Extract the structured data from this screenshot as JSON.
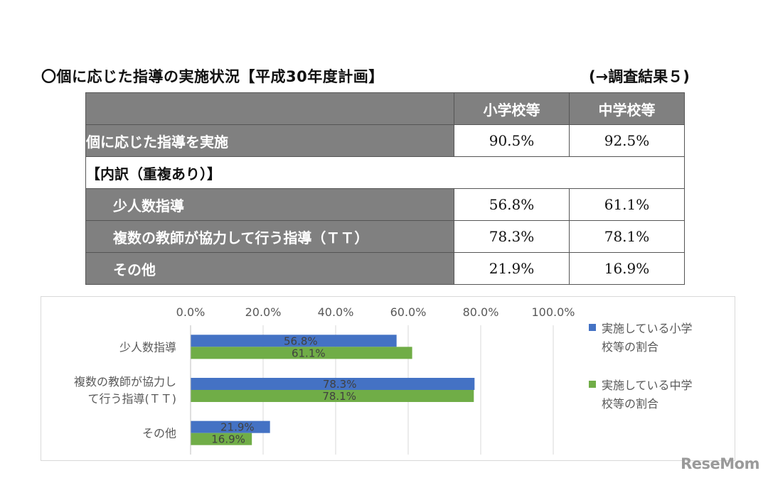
{
  "header": {
    "title": "〇個に応じた指導の実施状況【平成30年度計画】",
    "reference": "(→調査結果５)"
  },
  "summary_table": {
    "columns": [
      "小学校等",
      "中学校等"
    ],
    "rows": {
      "total": {
        "label": "個に応じた指導を実施",
        "elementary": "90.5%",
        "middle": "92.5%"
      },
      "section_label": "【内訳（重複あり）】",
      "small_group": {
        "label": "少人数指導",
        "elementary": "56.8%",
        "middle": "61.1%"
      },
      "team_teaching": {
        "label": "複数の教師が協力して行う指導（ＴＴ）",
        "elementary": "78.3%",
        "middle": "78.1%"
      },
      "other": {
        "label": "その他",
        "elementary": "21.9%",
        "middle": "16.9%"
      }
    }
  },
  "chart_data": {
    "type": "bar",
    "orientation": "horizontal",
    "categories": [
      "少人数指導",
      "複数の教師が協力して行う指導(ＴＴ)",
      "その他"
    ],
    "category_lines": [
      [
        "少人数指導"
      ],
      [
        "複数の教師が協力し",
        "て行う指導(ＴＴ)"
      ],
      [
        "その他"
      ]
    ],
    "series": [
      {
        "name": "実施している小学校等の割合",
        "name_lines": [
          "実施している小学",
          "校等の割合"
        ],
        "color": "#4472C4",
        "values": [
          56.8,
          78.3,
          21.9
        ],
        "labels": [
          "56.8%",
          "78.3%",
          "21.9%"
        ]
      },
      {
        "name": "実施している中学校等の割合",
        "name_lines": [
          "実施している中学",
          "校等の割合"
        ],
        "color": "#70AD47",
        "values": [
          61.1,
          78.1,
          16.9
        ],
        "labels": [
          "61.1%",
          "78.1%",
          "16.9%"
        ]
      }
    ],
    "xlim": [
      0,
      100
    ],
    "ticks": [
      "0.0%",
      "20.0%",
      "40.0%",
      "60.0%",
      "80.0%",
      "100.0%"
    ],
    "tick_values": [
      0,
      20,
      40,
      60,
      80,
      100
    ],
    "axis_position": "top",
    "grid": true,
    "legend_position": "right"
  },
  "watermark": "ReseMom"
}
